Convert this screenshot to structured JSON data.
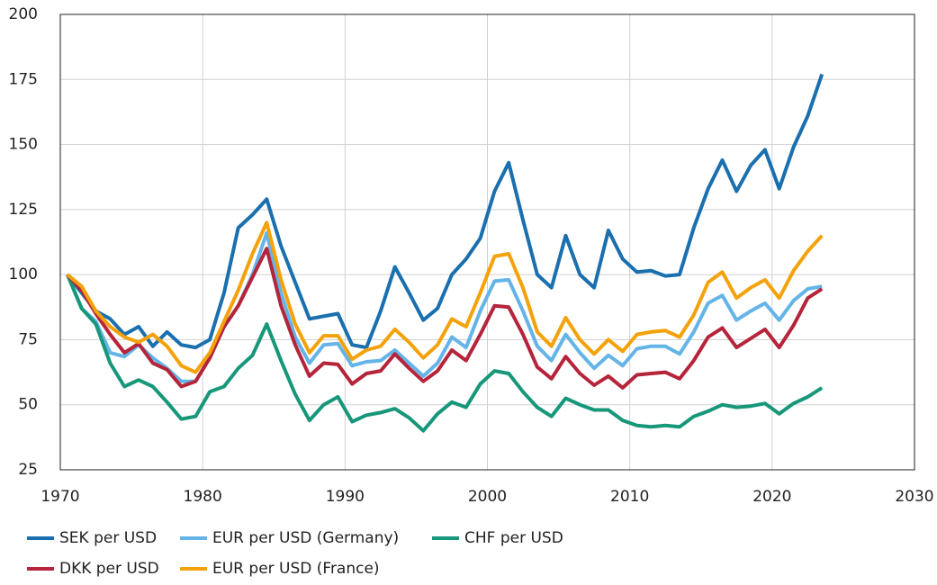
{
  "chart_data": {
    "type": "line",
    "x": [
      1970.5,
      1971.5,
      1972.5,
      1973.5,
      1974.5,
      1975.5,
      1976.5,
      1977.5,
      1978.5,
      1979.5,
      1980.5,
      1981.5,
      1982.5,
      1983.5,
      1984.5,
      1985.5,
      1986.5,
      1987.5,
      1988.5,
      1989.5,
      1990.5,
      1991.5,
      1992.5,
      1993.5,
      1994.5,
      1995.5,
      1996.5,
      1997.5,
      1998.5,
      1999.5,
      2000.5,
      2001.5,
      2002.5,
      2003.5,
      2004.5,
      2005.5,
      2006.5,
      2007.5,
      2008.5,
      2009.5,
      2010.5,
      2011.5,
      2012.5,
      2013.5,
      2014.5,
      2015.5,
      2016.5,
      2017.5,
      2018.5,
      2019.5,
      2020.5,
      2021.5,
      2022.5,
      2023.5
    ],
    "series": [
      {
        "name": "SEK per USD",
        "color": "#1a6faf",
        "values": [
          100,
          93,
          86,
          83,
          77,
          80,
          72.5,
          78,
          73,
          72,
          75,
          93,
          118,
          123,
          129,
          111,
          97,
          83,
          84,
          85,
          73,
          72,
          86,
          103,
          93,
          82.5,
          87,
          100,
          106,
          114,
          132,
          143,
          121,
          100,
          95,
          115,
          100,
          95,
          117,
          106,
          101,
          101.5,
          99.5,
          100,
          118,
          133,
          144,
          132,
          142,
          148,
          133,
          149,
          161,
          177
        ]
      },
      {
        "name": "EUR per USD (Germany)",
        "color": "#64b4e8",
        "values": [
          100,
          87,
          82,
          70,
          68.5,
          73,
          68,
          64,
          59,
          59,
          68,
          80,
          88,
          100,
          116,
          93,
          76,
          66,
          73,
          73.5,
          65,
          66.5,
          67,
          71,
          66,
          61,
          66,
          76,
          72,
          86,
          97.5,
          98,
          86,
          72.5,
          67,
          77,
          70,
          64,
          69,
          65,
          71.5,
          72.5,
          72.5,
          69.5,
          78,
          89,
          92,
          82.5,
          86,
          89,
          82.5,
          90,
          94.5,
          95.5
        ]
      },
      {
        "name": "CHF per USD",
        "color": "#17977a",
        "values": [
          100,
          87,
          81,
          66,
          57,
          59.5,
          57,
          51,
          44.5,
          45.5,
          55,
          57,
          64,
          69,
          81,
          67,
          54,
          44,
          50,
          53,
          43.5,
          46,
          47,
          48.5,
          45,
          40,
          46.5,
          51,
          49,
          58,
          63,
          62,
          55,
          49,
          45.5,
          52.5,
          50,
          48,
          48,
          44,
          42,
          41.5,
          42,
          41.5,
          45.5,
          47.5,
          50,
          49,
          49.5,
          50.5,
          46.5,
          50.5,
          53,
          56.5
        ]
      },
      {
        "name": "DKK per USD",
        "color": "#b5243a",
        "values": [
          100,
          94,
          85,
          77,
          70,
          73.5,
          66,
          63.5,
          57,
          59,
          68,
          80,
          88,
          99,
          110,
          88,
          73,
          61,
          66,
          65.5,
          58,
          62,
          63,
          69.5,
          64,
          59,
          63,
          71,
          67,
          77,
          88,
          87.5,
          77,
          64.5,
          60,
          68.5,
          62,
          57.5,
          61,
          56.5,
          61.5,
          62,
          62.5,
          60,
          67,
          76,
          79.5,
          72,
          75.5,
          79,
          72,
          80.5,
          91,
          94.5
        ]
      },
      {
        "name": "EUR per USD (France)",
        "color": "#f4a20c",
        "values": [
          100,
          95.5,
          86,
          80,
          76,
          74,
          77,
          72.5,
          65,
          62.5,
          70,
          82,
          94,
          108,
          120,
          98,
          81,
          70,
          76.5,
          76.5,
          67.5,
          71,
          72.5,
          79,
          74,
          68,
          73,
          83,
          80,
          93,
          107,
          108,
          95,
          78,
          72.5,
          83.5,
          75,
          69.5,
          75,
          70.5,
          77,
          78,
          78.5,
          76,
          84.5,
          97,
          101,
          91,
          95,
          98,
          91,
          101.5,
          109,
          115
        ]
      }
    ],
    "xlim": [
      1970,
      2030
    ],
    "xticks": [
      1970,
      1980,
      1990,
      2000,
      2010,
      2020,
      2030
    ],
    "ylim": [
      25,
      200
    ],
    "yticks": [
      25,
      50,
      75,
      100,
      125,
      150,
      175,
      200
    ],
    "grid": true,
    "legend": "bottom"
  }
}
